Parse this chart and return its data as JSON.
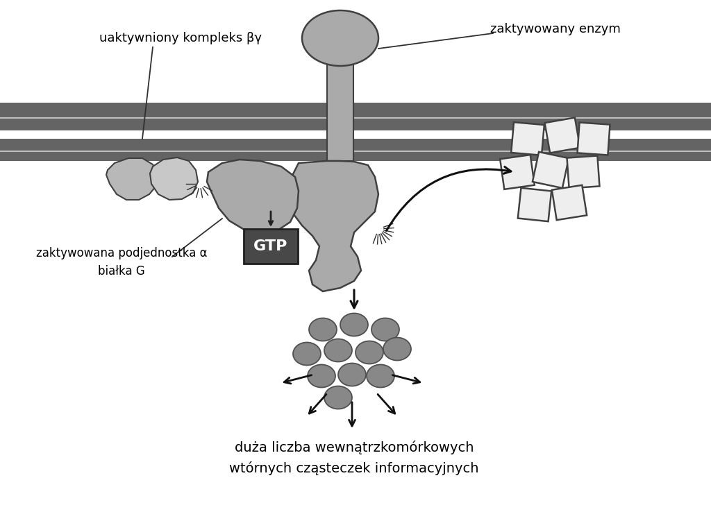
{
  "bg_color": "#ffffff",
  "membrane_color": "#646464",
  "membrane_light_line": "#c0c0c0",
  "protein_color": "#aaaaaa",
  "protein_dark": "#888888",
  "gtp_box_color": "#484848",
  "gtp_text_color": "#ffffff",
  "circle_color": "#888888",
  "square_color": "#eeeeee",
  "arrow_color": "#000000",
  "text_color": "#000000",
  "label_uaktywniony": "uaktywniony kompleks βγ",
  "label_zaktywowany_enzym": "zaktywowany enzym",
  "label_podjednostka": "zaktywowana podjednostka α\nbiałka G",
  "label_bottom": "duża liczba wewnątrzkomórkowych\nwtórnych cząsteczek informacyjnych"
}
